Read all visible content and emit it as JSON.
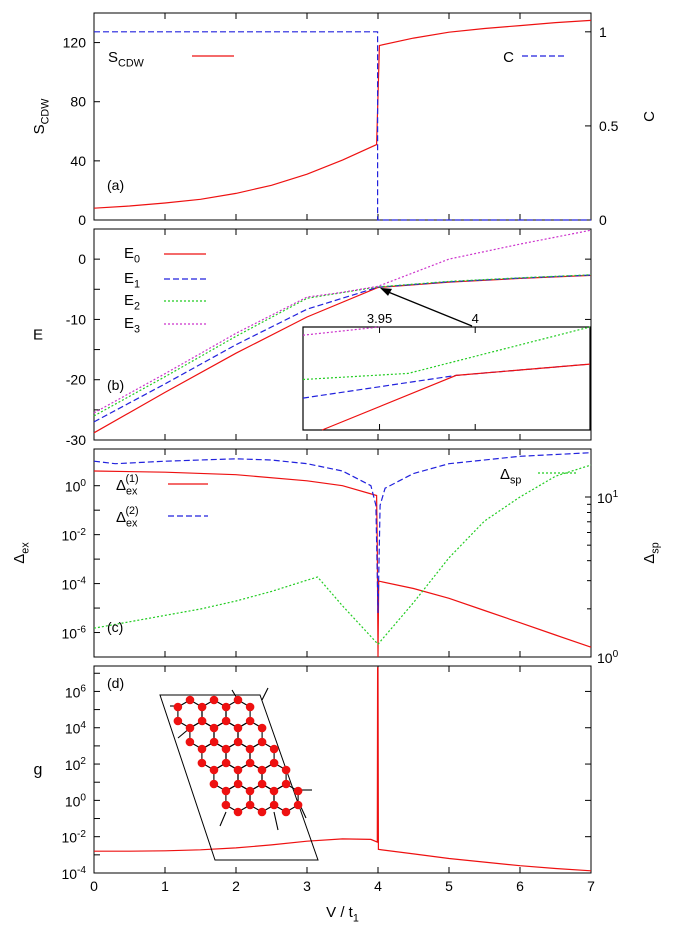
{
  "chart_data": [
    {
      "panel_label": "(a)",
      "type": "line",
      "xlim": [
        0,
        7
      ],
      "ylabel_main": "S",
      "ylabel_sub": "CDW",
      "ylim": [
        0,
        140
      ],
      "yticks": [
        0,
        40,
        80,
        120
      ],
      "ylabel_right": "C",
      "ylim_right": [
        0,
        1.1
      ],
      "yticks_right": [
        "0",
        "0.5",
        "1"
      ],
      "yticks_right_values": [
        0,
        0.5,
        1
      ],
      "series": [
        {
          "name_main": "S",
          "name_sub": "CDW",
          "color": "#ee1111",
          "dash": "solid",
          "axis": "left",
          "x": [
            0,
            0.5,
            1,
            1.5,
            2,
            2.5,
            3,
            3.5,
            3.98,
            4.0,
            4.02,
            4.5,
            5,
            5.5,
            6,
            6.5,
            7
          ],
          "y": [
            8,
            9.5,
            11.5,
            14,
            18,
            23.5,
            31,
            40.5,
            51,
            84,
            118,
            123,
            127,
            129.5,
            131.5,
            133.5,
            135
          ]
        },
        {
          "name": "C",
          "color": "#2222dd",
          "dash": "dashed",
          "axis": "right",
          "x": [
            0,
            3.995,
            3.995,
            7
          ],
          "y": [
            1,
            1,
            0,
            0
          ]
        }
      ]
    },
    {
      "panel_label": "(b)",
      "type": "line",
      "xlim": [
        0,
        7
      ],
      "ylabel": "E",
      "ylim": [
        -30,
        5
      ],
      "yticks": [
        -30,
        -20,
        -10,
        0
      ],
      "series": [
        {
          "name_main": "E",
          "name_sub": "0",
          "color": "#ee1111",
          "dash": "solid",
          "x": [
            0,
            1,
            2,
            3,
            4,
            5,
            6,
            7
          ],
          "y": [
            -28.8,
            -22.1,
            -15.6,
            -9.6,
            -4.7,
            -3.8,
            -3.2,
            -2.7
          ]
        },
        {
          "name_main": "E",
          "name_sub": "1",
          "color": "#2222dd",
          "dash": "dashed",
          "x": [
            0,
            1,
            2,
            3,
            4,
            5,
            6,
            7
          ],
          "y": [
            -27,
            -20.7,
            -14.2,
            -8.3,
            -4.65,
            -3.75,
            -3.15,
            -2.65
          ]
        },
        {
          "name_main": "E",
          "name_sub": "2",
          "color": "#22cc22",
          "dash": "dotted",
          "x": [
            0,
            1,
            2,
            3,
            4,
            5,
            6,
            7
          ],
          "y": [
            -26,
            -19.5,
            -12.8,
            -6.5,
            -4.6,
            -3.7,
            -3.1,
            -2.6
          ]
        },
        {
          "name_main": "E",
          "name_sub": "3",
          "color": "#cc33cc",
          "dash": "dotted",
          "x": [
            0,
            1,
            2,
            3,
            3.5,
            4,
            5,
            6,
            7
          ],
          "y": [
            -25.5,
            -19,
            -12.3,
            -6.3,
            -5.5,
            -4.5,
            0,
            2.5,
            4.8
          ]
        }
      ],
      "inset": {
        "xtick_labels": [
          "3.95",
          "4"
        ],
        "xtick_values": [
          3.95,
          4.0
        ],
        "xlim": [
          3.91,
          4.06
        ],
        "ylim": [
          0,
          10
        ],
        "series": [
          {
            "color": "#cc33cc",
            "dash": "dotted",
            "x": [
              3.91,
              3.95
            ],
            "y": [
              9.2,
              10
            ]
          },
          {
            "color": "#22cc22",
            "dash": "dotted",
            "x": [
              3.91,
              3.965,
              4.06
            ],
            "y": [
              4.9,
              5.5,
              10
            ]
          },
          {
            "color": "#2222dd",
            "dash": "dashed",
            "x": [
              3.91,
              3.99,
              4.06
            ],
            "y": [
              3.1,
              5.3,
              6.4
            ]
          },
          {
            "color": "#ee1111",
            "dash": "solid",
            "x": [
              3.92,
              3.99,
              4.06
            ],
            "y": [
              0,
              5.3,
              6.4
            ]
          }
        ]
      }
    },
    {
      "panel_label": "(c)",
      "type": "line",
      "xlim": [
        0,
        7
      ],
      "ylabel_main": "Δ",
      "ylabel_sub": "ex",
      "ylabel_right_main": "Δ",
      "ylabel_right_sub": "sp",
      "yscale": "log",
      "ylim_log10": [
        -7,
        1.5
      ],
      "yticks": [
        {
          "base": "10",
          "exp": "0",
          "v": 0
        },
        {
          "base": "10",
          "exp": "-2",
          "v": -2
        },
        {
          "base": "10",
          "exp": "-4",
          "v": -4
        },
        {
          "base": "10",
          "exp": "-6",
          "v": -6
        }
      ],
      "yscale_right": "log",
      "ylim_right_log10": [
        0,
        1.3
      ],
      "yticks_right": [
        {
          "base": "10",
          "exp": "0",
          "v": 0
        },
        {
          "base": "10",
          "exp": "1",
          "v": 1
        }
      ],
      "series": [
        {
          "name_main": "Δ",
          "name_sub": "ex",
          "name_sup": "(1)",
          "color": "#ee1111",
          "dash": "solid",
          "axis": "left",
          "x": [
            0,
            1,
            2,
            3,
            3.5,
            3.98,
            3.99,
            4.0,
            4.01,
            4.5,
            5,
            5.5,
            6,
            6.5,
            7
          ],
          "y": [
            0.6,
            0.55,
            0.45,
            0.2,
            0.0,
            -0.4,
            -2.5,
            -7,
            -3.9,
            -4.2,
            -4.6,
            -5.1,
            -5.6,
            -6.1,
            -6.6
          ]
        },
        {
          "name_main": "Δ",
          "name_sub": "ex",
          "name_sup": "(2)",
          "color": "#2222dd",
          "dash": "dashed",
          "axis": "left",
          "x": [
            0,
            0.3,
            1,
            2,
            2.5,
            3,
            3.5,
            3.9,
            3.97,
            4.0,
            4.03,
            4.1,
            4.5,
            5,
            6,
            7
          ],
          "y": [
            1.0,
            0.9,
            1.0,
            1.1,
            1.05,
            0.9,
            0.6,
            0.0,
            -0.8,
            -5.2,
            -0.8,
            -0.1,
            0.5,
            0.9,
            1.2,
            1.35
          ]
        },
        {
          "name_main": "Δ",
          "name_sub": "sp",
          "color": "#22cc22",
          "dash": "dotted",
          "axis": "right",
          "x": [
            0,
            0.5,
            1,
            1.5,
            2,
            2.5,
            3,
            3.15,
            3.5,
            4.0,
            4.5,
            5,
            5.5,
            6,
            6.5,
            7
          ],
          "y": [
            0.18,
            0.22,
            0.26,
            0.3,
            0.35,
            0.41,
            0.48,
            0.5,
            0.32,
            0.08,
            0.34,
            0.62,
            0.85,
            1.0,
            1.13,
            1.2
          ]
        }
      ]
    },
    {
      "panel_label": "(d)",
      "type": "line",
      "xlim": [
        0,
        7
      ],
      "xlabel_main": "V / t",
      "xlabel_sub": "1",
      "xticks": [
        0,
        1,
        2,
        3,
        4,
        5,
        6,
        7
      ],
      "ylabel": "g",
      "yscale": "log",
      "ylim_log10": [
        -4,
        7.4
      ],
      "yticks": [
        {
          "base": "10",
          "exp": "6",
          "v": 6
        },
        {
          "base": "10",
          "exp": "4",
          "v": 4
        },
        {
          "base": "10",
          "exp": "2",
          "v": 2
        },
        {
          "base": "10",
          "exp": "0",
          "v": 0
        },
        {
          "base": "10",
          "exp": "-2",
          "v": -2
        },
        {
          "base": "10",
          "exp": "-4",
          "v": -4
        }
      ],
      "series": [
        {
          "color": "#ee1111",
          "dash": "solid",
          "x": [
            0,
            0.5,
            1,
            1.5,
            2,
            2.5,
            3,
            3.5,
            3.9,
            3.99,
            3.995,
            4.0,
            4.005,
            4.5,
            5,
            5.5,
            6,
            6.5,
            7
          ],
          "y": [
            -2.8,
            -2.8,
            -2.78,
            -2.72,
            -2.62,
            -2.45,
            -2.25,
            -2.12,
            -2.15,
            -2.3,
            7.3,
            7.3,
            -2.7,
            -2.95,
            -3.2,
            -3.4,
            -3.6,
            -3.75,
            -3.88
          ]
        }
      ]
    }
  ]
}
